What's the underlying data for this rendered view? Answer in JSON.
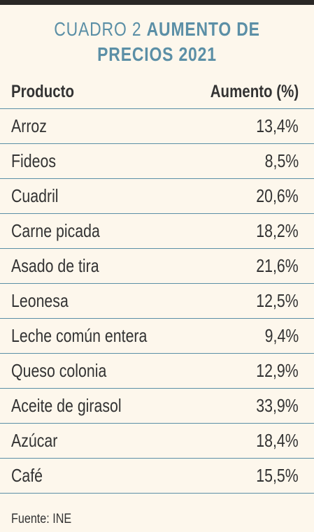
{
  "title": {
    "light": "CUADRO 2",
    "bold_line1": "AUMENTO DE",
    "bold_line2": "PRECIOS 2021"
  },
  "table": {
    "headers": [
      "Producto",
      "Aumento (%)"
    ],
    "rows": [
      [
        "Arroz",
        "13,4%"
      ],
      [
        "Fideos",
        "8,5%"
      ],
      [
        "Cuadril",
        "20,6%"
      ],
      [
        "Carne picada",
        "18,2%"
      ],
      [
        "Asado de tira",
        "21,6%"
      ],
      [
        "Leonesa",
        "12,5%"
      ],
      [
        "Leche común entera",
        "9,4%"
      ],
      [
        "Queso colonia",
        "12,9%"
      ],
      [
        "Aceite de girasol",
        "33,9%"
      ],
      [
        "Azúcar",
        "18,4%"
      ],
      [
        "Café",
        "15,5%"
      ]
    ]
  },
  "source": "Fuente: INE",
  "colors": {
    "accent": "#5b8fa6",
    "background": "#fdf7ec",
    "text": "#333333",
    "topbar": "#2a2826"
  }
}
